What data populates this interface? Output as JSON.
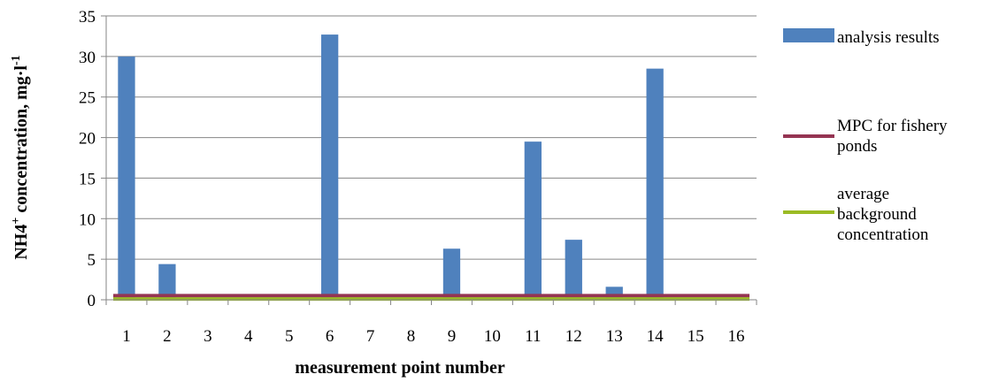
{
  "chart_data": {
    "type": "bar",
    "title": "",
    "xlabel": "measurement point number",
    "ylabel": {
      "base": "NH4",
      "superscript_ion": "+",
      "middle": " concentration, mg·l",
      "superscript_unit": "-1"
    },
    "categories": [
      "1",
      "2",
      "3",
      "4",
      "5",
      "6",
      "7",
      "8",
      "9",
      "10",
      "11",
      "12",
      "13",
      "14",
      "15",
      "16"
    ],
    "ylim": [
      0,
      35
    ],
    "yticks": [
      0,
      5,
      10,
      15,
      20,
      25,
      30,
      35
    ],
    "grid": true,
    "legend_position": "right",
    "series": [
      {
        "name": "analysis results",
        "kind": "bar",
        "color": "#4f81bd",
        "values": [
          30.0,
          4.4,
          0,
          0,
          0,
          32.7,
          0,
          0,
          6.3,
          0,
          19.5,
          7.4,
          1.6,
          28.5,
          0,
          0
        ]
      },
      {
        "name": "MPC for fishery ponds",
        "kind": "line",
        "color": "#953553",
        "values": [
          0.5,
          0.5,
          0.5,
          0.5,
          0.5,
          0.5,
          0.5,
          0.5,
          0.5,
          0.5,
          0.5,
          0.5,
          0.5,
          0.5,
          0.5,
          0.5
        ]
      },
      {
        "name": "average background concentration",
        "kind": "line",
        "color": "#9bbb24",
        "values": [
          0.1,
          0.1,
          0.1,
          0.1,
          0.1,
          0.1,
          0.1,
          0.1,
          0.1,
          0.1,
          0.1,
          0.1,
          0.1,
          0.1,
          0.1,
          0.1
        ]
      }
    ],
    "legend": {
      "items": [
        {
          "series": 0,
          "lines": [
            "analysis results"
          ]
        },
        {
          "series": 1,
          "lines": [
            "MPC for fishery",
            "ponds"
          ]
        },
        {
          "series": 2,
          "lines": [
            "average",
            "background",
            "concentration"
          ]
        }
      ]
    }
  }
}
